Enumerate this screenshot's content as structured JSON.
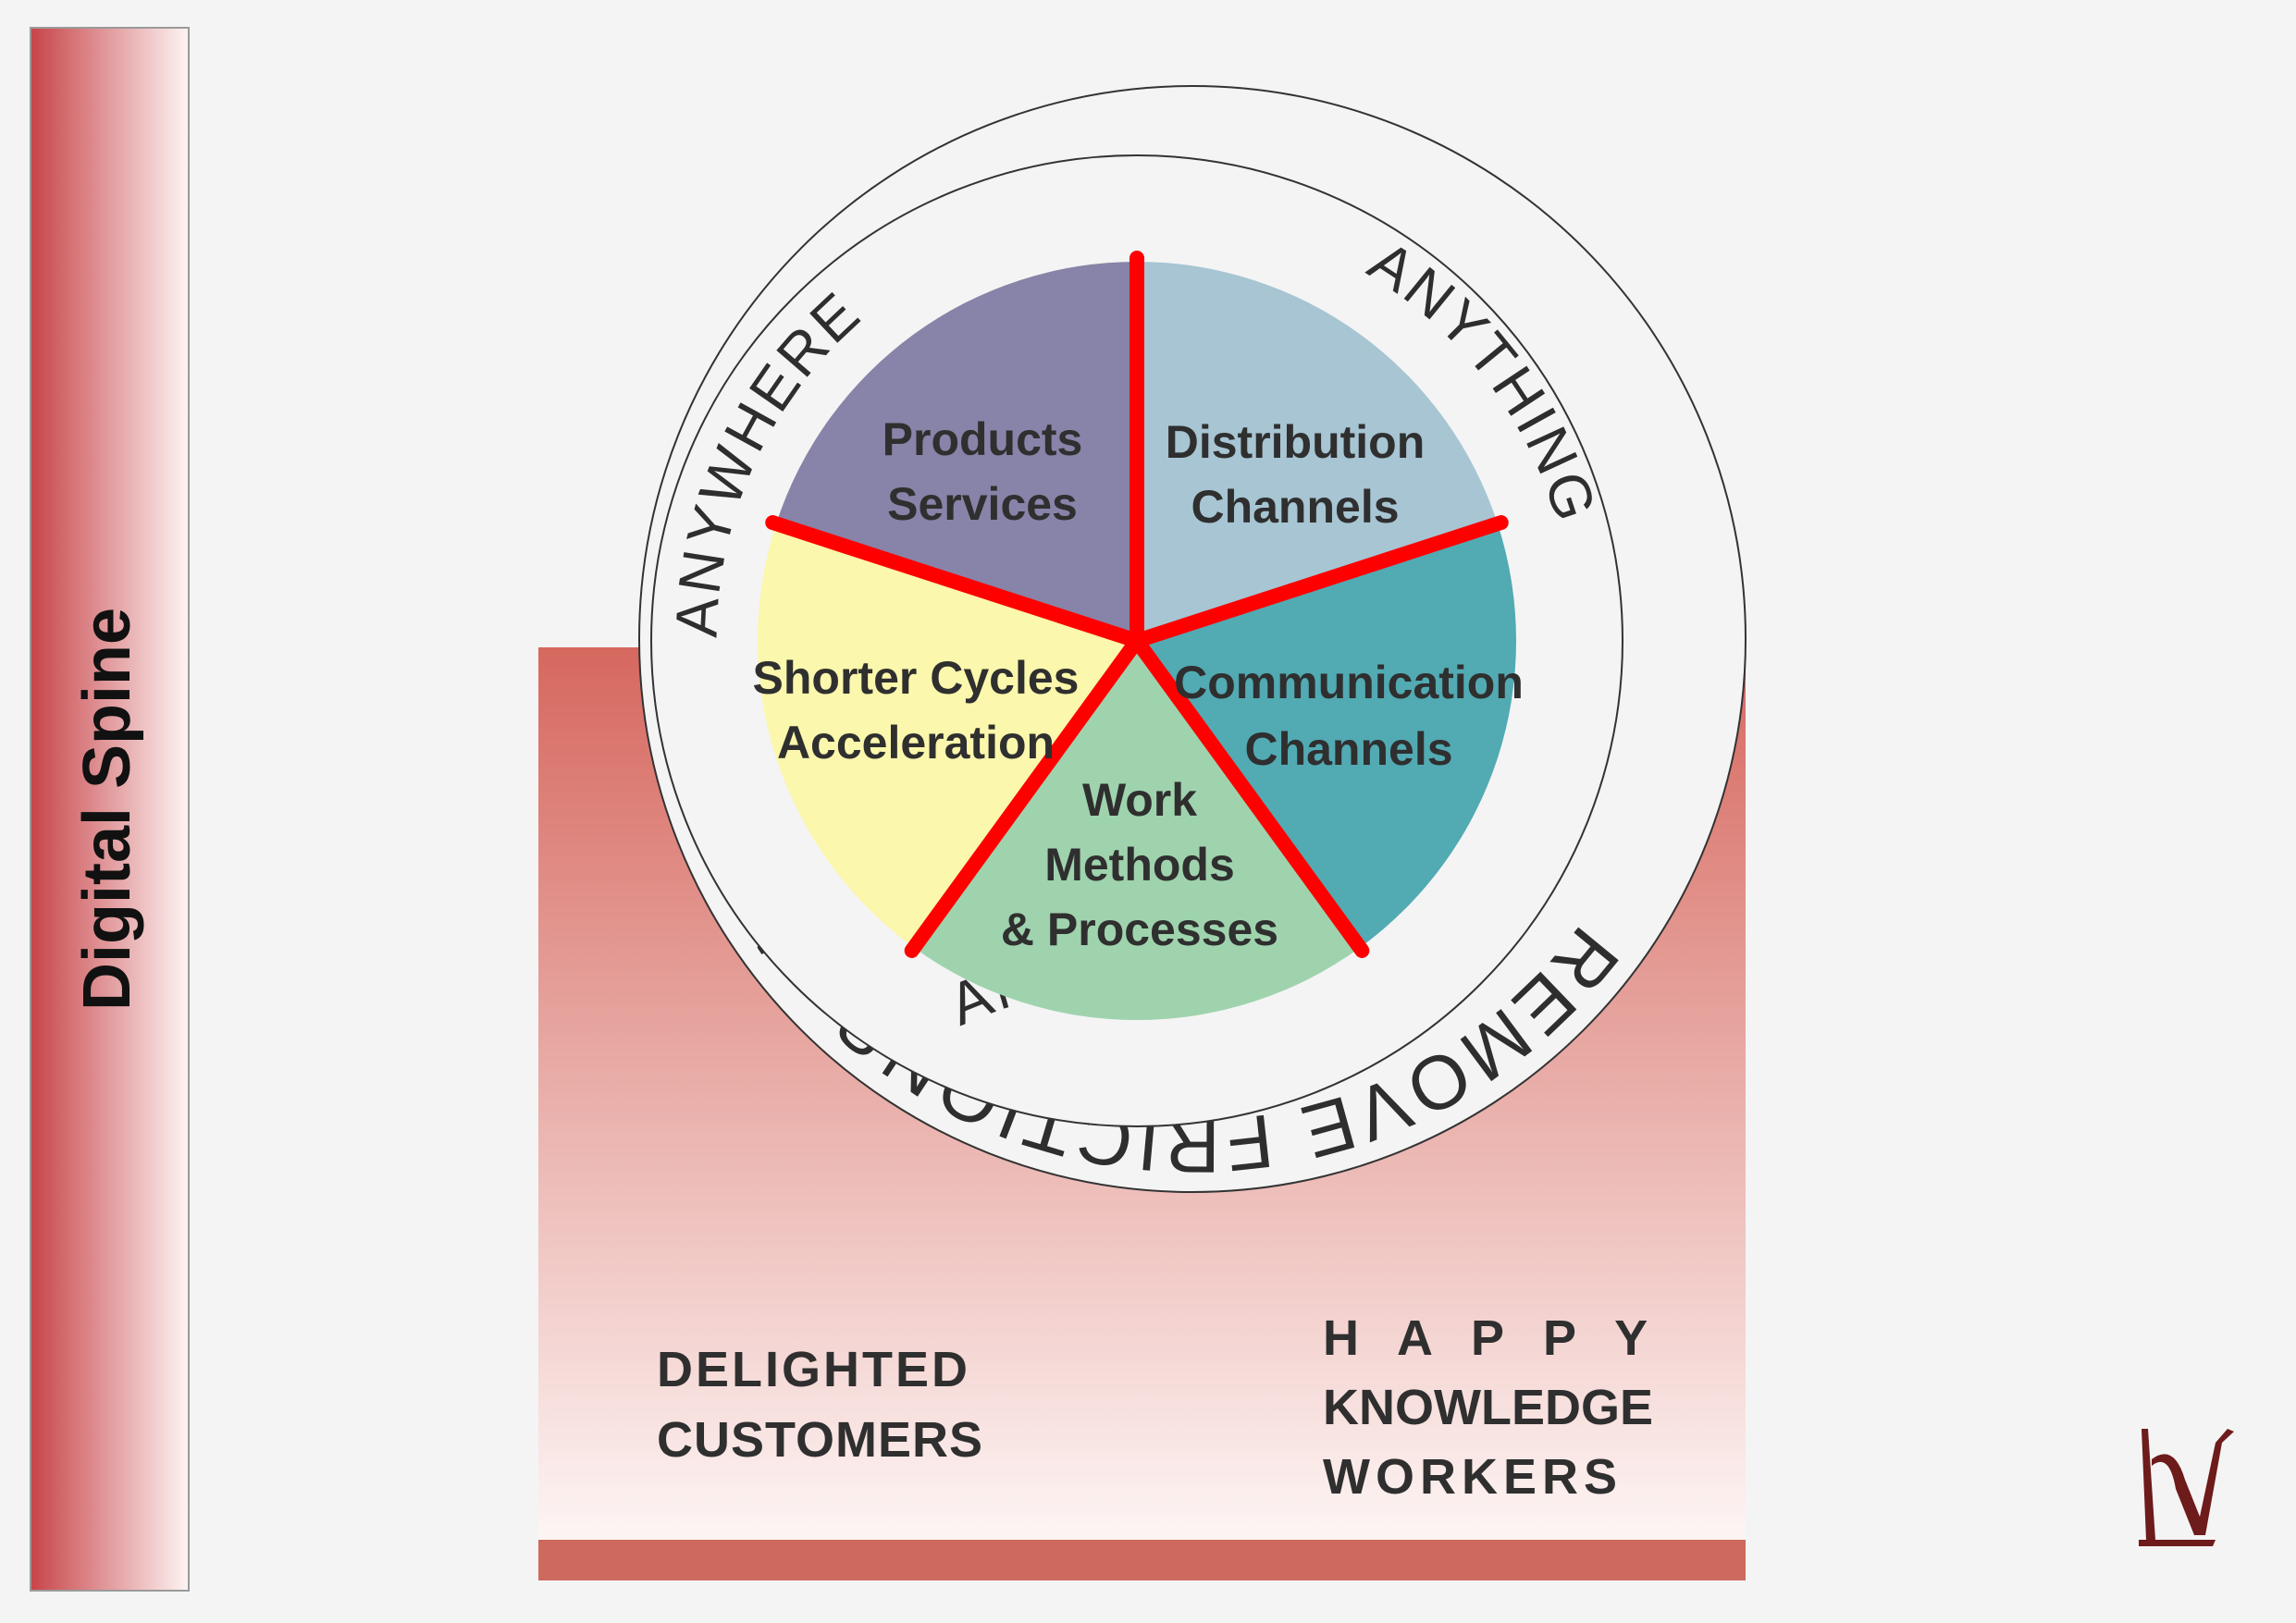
{
  "spine": {
    "label": "Digital Spine"
  },
  "outer_ring": {
    "text": "REMOVE FRICTIONS - NIMBLER & SIMPLER - SUPERIOR UX - END-TO-END - "
  },
  "inner_ring": {
    "anywhere": "ANYWHERE",
    "anything": "ANYTHING",
    "anytime": "ANYTIME"
  },
  "segments": [
    {
      "name": "products-services",
      "lines": [
        "Products",
        "Services"
      ],
      "color": "#8883a8"
    },
    {
      "name": "distribution-channels",
      "lines": [
        "Distribution",
        "Channels"
      ],
      "color": "#a7c5d3"
    },
    {
      "name": "communication-channels",
      "lines": [
        "Communication",
        "Channels"
      ],
      "color": "#52aab3"
    },
    {
      "name": "work-methods-processes",
      "lines": [
        "Work",
        "Methods",
        "& Processes"
      ],
      "color": "#9fd3ae"
    },
    {
      "name": "shorter-cycles-acceleration",
      "lines": [
        "Shorter Cycles",
        "Acceleration"
      ],
      "color": "#fbf7ac"
    }
  ],
  "divider_color": "#ff0000",
  "footer": {
    "left": [
      "DELIGHTED",
      "CUSTOMERS"
    ],
    "right": [
      "H A P P Y",
      "KNOWLEDGE",
      "WORKERS"
    ]
  },
  "colors": {
    "panel_top": "#d86c62",
    "panel_bottom": "#fbf1f0",
    "panel_bar": "#cd6a5d",
    "spine_edge": "#c74448",
    "logo": "#6e1b1b"
  }
}
